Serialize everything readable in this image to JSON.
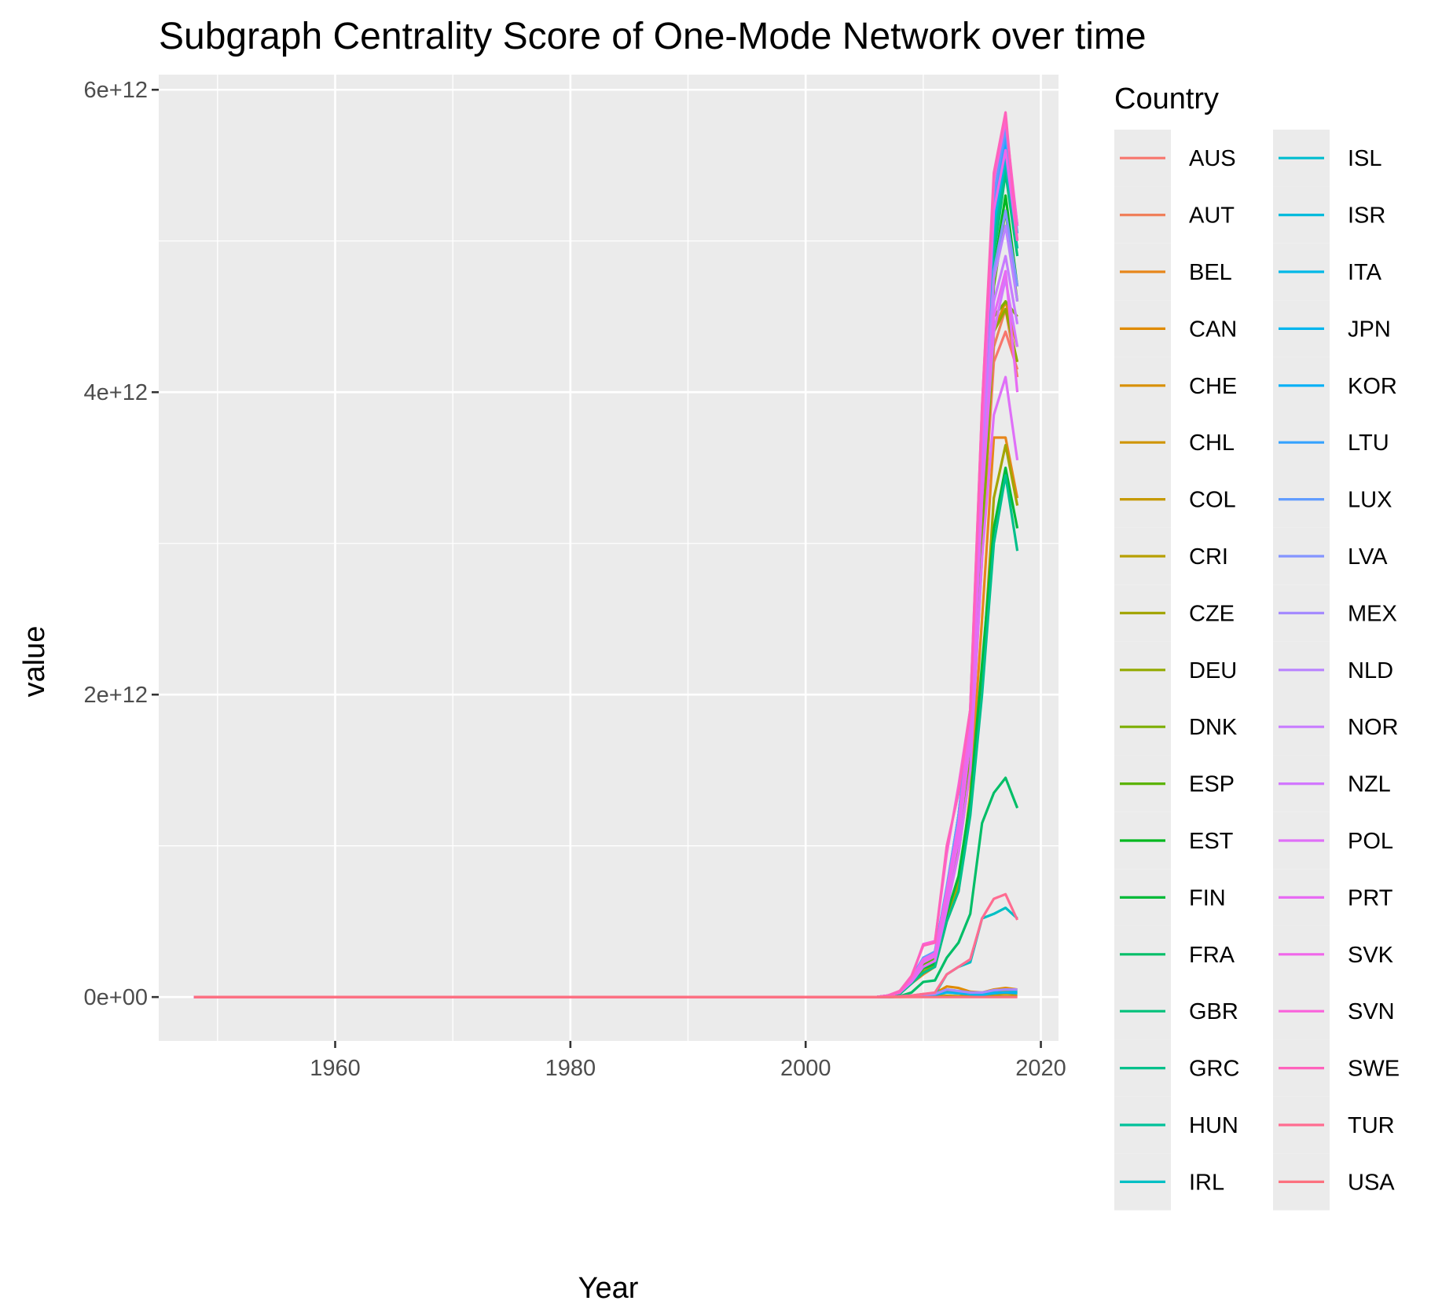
{
  "chart_data": {
    "type": "line",
    "title": "Subgraph Centrality Score of One-Mode Network over time",
    "xlabel": "Year",
    "ylabel": "value",
    "xlim": [
      1945,
      2021.5
    ],
    "ylim": [
      -290000000000.0,
      6100000000000.0
    ],
    "x_ticks": [
      1960,
      1980,
      2000,
      2020
    ],
    "x_tick_labels": [
      "1960",
      "1980",
      "2000",
      "2020"
    ],
    "x_minor_ticks": [
      1950,
      1970,
      1990,
      2010
    ],
    "y_ticks": [
      0,
      2000000000000.0,
      4000000000000.0,
      6000000000000.0
    ],
    "y_tick_labels": [
      "0e+00",
      "2e+12",
      "4e+12",
      "6e+12"
    ],
    "y_minor_ticks": [
      1000000000000.0,
      3000000000000.0,
      5000000000000.0
    ],
    "grid": true,
    "legend_title": "Country",
    "legend_position": "right",
    "x": [
      1948,
      2005,
      2006,
      2007,
      2008,
      2009,
      2010,
      2011,
      2012,
      2013,
      2014,
      2015,
      2016,
      2017,
      2018
    ],
    "series": [
      {
        "name": "AUS",
        "color": "#F8766D",
        "values": [
          0,
          0,
          0,
          10000000000.0,
          40000000000.0,
          120000000000.0,
          230000000000.0,
          270000000000.0,
          650000000000.0,
          1000000000000.0,
          1600000000000.0,
          3000000000000.0,
          4200000000000.0,
          4400000000000.0,
          4150000000000.0
        ]
      },
      {
        "name": "AUT",
        "color": "#F0805B",
        "values": [
          0,
          0,
          0,
          10000000000.0,
          30000000000.0,
          100000000000.0,
          190000000000.0,
          230000000000.0,
          600000000000.0,
          950000000000.0,
          1500000000000.0,
          2900000000000.0,
          4300000000000.0,
          4550000000000.0,
          4100000000000.0
        ]
      },
      {
        "name": "BEL",
        "color": "#E7861B",
        "values": [
          0,
          0,
          0,
          10000000000.0,
          30000000000.0,
          90000000000.0,
          150000000000.0,
          200000000000.0,
          500000000000.0,
          700000000000.0,
          1350000000000.0,
          2500000000000.0,
          3700000000000.0,
          3700000000000.0,
          3300000000000.0
        ]
      },
      {
        "name": "CAN",
        "color": "#E08B00",
        "values": [
          0,
          0,
          0,
          0,
          5000000000.0,
          10000000000.0,
          20000000000.0,
          25000000000.0,
          70000000000.0,
          60000000000.0,
          35000000000.0,
          30000000000.0,
          50000000000.0,
          60000000000.0,
          50000000000.0
        ]
      },
      {
        "name": "CHE",
        "color": "#D89000",
        "values": [
          0,
          0,
          0,
          10000000000.0,
          30000000000.0,
          110000000000.0,
          210000000000.0,
          250000000000.0,
          620000000000.0,
          980000000000.0,
          1550000000000.0,
          3000000000000.0,
          4400000000000.0,
          4600000000000.0,
          4300000000000.0
        ]
      },
      {
        "name": "CHL",
        "color": "#CF9400",
        "values": [
          0,
          0,
          0,
          0,
          2000000000.0,
          5000000000.0,
          10000000000.0,
          12000000000.0,
          30000000000.0,
          25000000000.0,
          15000000000.0,
          12000000000.0,
          20000000000.0,
          25000000000.0,
          20000000000.0
        ]
      },
      {
        "name": "COL",
        "color": "#C59900",
        "values": [
          0,
          0,
          0,
          0,
          2000000000.0,
          5000000000.0,
          10000000000.0,
          12000000000.0,
          35000000000.0,
          30000000000.0,
          20000000000.0,
          15000000000.0,
          30000000000.0,
          35000000000.0,
          30000000000.0
        ]
      },
      {
        "name": "CRI",
        "color": "#B79F00",
        "values": [
          0,
          0,
          0,
          0,
          1000000000.0,
          2000000000.0,
          3000000000.0,
          4000000000.0,
          8000000000.0,
          6000000000.0,
          4000000000.0,
          3000000000.0,
          5000000000.0,
          6000000000.0,
          5000000000.0
        ]
      },
      {
        "name": "CZE",
        "color": "#A3A500",
        "values": [
          0,
          0,
          0,
          10000000000.0,
          30000000000.0,
          90000000000.0,
          170000000000.0,
          210000000000.0,
          520000000000.0,
          750000000000.0,
          1250000000000.0,
          2100000000000.0,
          3300000000000.0,
          3650000000000.0,
          3250000000000.0
        ]
      },
      {
        "name": "DEU",
        "color": "#93AA00",
        "values": [
          0,
          0,
          0,
          10000000000.0,
          30000000000.0,
          100000000000.0,
          200000000000.0,
          240000000000.0,
          600000000000.0,
          960000000000.0,
          1550000000000.0,
          3000000000000.0,
          4400000000000.0,
          4550000000000.0,
          4200000000000.0
        ]
      },
      {
        "name": "DNK",
        "color": "#7CAE00",
        "values": [
          0,
          0,
          0,
          10000000000.0,
          30000000000.0,
          110000000000.0,
          210000000000.0,
          250000000000.0,
          620000000000.0,
          1000000000000.0,
          1600000000000.0,
          3100000000000.0,
          4500000000000.0,
          4600000000000.0,
          4500000000000.0
        ]
      },
      {
        "name": "ESP",
        "color": "#5BB300",
        "values": [
          0,
          0,
          0,
          10000000000.0,
          30000000000.0,
          120000000000.0,
          220000000000.0,
          260000000000.0,
          650000000000.0,
          1050000000000.0,
          1700000000000.0,
          3300000000000.0,
          4700000000000.0,
          5200000000000.0,
          4600000000000.0
        ]
      },
      {
        "name": "EST",
        "color": "#00B81F",
        "values": [
          0,
          0,
          0,
          10000000000.0,
          30000000000.0,
          120000000000.0,
          230000000000.0,
          270000000000.0,
          660000000000.0,
          1100000000000.0,
          1750000000000.0,
          3400000000000.0,
          4800000000000.0,
          5300000000000.0,
          4700000000000.0
        ]
      },
      {
        "name": "FIN",
        "color": "#00BA38",
        "values": [
          0,
          0,
          0,
          10000000000.0,
          30000000000.0,
          100000000000.0,
          190000000000.0,
          220000000000.0,
          550000000000.0,
          800000000000.0,
          1300000000000.0,
          2200000000000.0,
          3100000000000.0,
          3500000000000.0,
          3100000000000.0
        ]
      },
      {
        "name": "FRA",
        "color": "#00BE67",
        "values": [
          0,
          0,
          0,
          0,
          5000000000.0,
          30000000000.0,
          100000000000.0,
          110000000000.0,
          260000000000.0,
          360000000000.0,
          550000000000.0,
          1150000000000.0,
          1350000000000.0,
          1450000000000.0,
          1250000000000.0
        ]
      },
      {
        "name": "GBR",
        "color": "#00C17A",
        "values": [
          0,
          0,
          0,
          10000000000.0,
          30000000000.0,
          120000000000.0,
          240000000000.0,
          280000000000.0,
          680000000000.0,
          1150000000000.0,
          1800000000000.0,
          3500000000000.0,
          4900000000000.0,
          5450000000000.0,
          4900000000000.0
        ]
      },
      {
        "name": "GRC",
        "color": "#00C08B",
        "values": [
          0,
          0,
          0,
          10000000000.0,
          20000000000.0,
          90000000000.0,
          160000000000.0,
          200000000000.0,
          500000000000.0,
          700000000000.0,
          1200000000000.0,
          2000000000000.0,
          3000000000000.0,
          3450000000000.0,
          2950000000000.0
        ]
      },
      {
        "name": "HUN",
        "color": "#00C19A",
        "values": [
          0,
          0,
          0,
          10000000000.0,
          30000000000.0,
          120000000000.0,
          240000000000.0,
          280000000000.0,
          690000000000.0,
          1150000000000.0,
          1800000000000.0,
          3600000000000.0,
          5000000000000.0,
          5500000000000.0,
          4950000000000.0
        ]
      },
      {
        "name": "IRL",
        "color": "#00BFC4",
        "values": [
          0,
          0,
          0,
          0,
          5000000000.0,
          10000000000.0,
          15000000000.0,
          20000000000.0,
          150000000000.0,
          200000000000.0,
          230000000000.0,
          520000000000.0,
          550000000000.0,
          590000000000.0,
          520000000000.0
        ]
      },
      {
        "name": "ISL",
        "color": "#00BDD0",
        "values": [
          0,
          0,
          0,
          10000000000.0,
          30000000000.0,
          120000000000.0,
          250000000000.0,
          290000000000.0,
          700000000000.0,
          1200000000000.0,
          1850000000000.0,
          3700000000000.0,
          5100000000000.0,
          5550000000000.0,
          5000000000000.0
        ]
      },
      {
        "name": "ISR",
        "color": "#00BBDC",
        "values": [
          0,
          0,
          0,
          0,
          3000000000.0,
          8000000000.0,
          15000000000.0,
          20000000000.0,
          50000000000.0,
          40000000000.0,
          30000000000.0,
          25000000000.0,
          40000000000.0,
          50000000000.0,
          40000000000.0
        ]
      },
      {
        "name": "ITA",
        "color": "#00B8E7",
        "values": [
          0,
          0,
          0,
          10000000000.0,
          30000000000.0,
          120000000000.0,
          250000000000.0,
          290000000000.0,
          700000000000.0,
          1200000000000.0,
          1850000000000.0,
          3700000000000.0,
          5150000000000.0,
          5600000000000.0,
          5100000000000.0
        ]
      },
      {
        "name": "JPN",
        "color": "#00B5EE",
        "values": [
          0,
          0,
          0,
          0,
          2000000000.0,
          6000000000.0,
          10000000000.0,
          15000000000.0,
          30000000000.0,
          25000000000.0,
          18000000000.0,
          15000000000.0,
          25000000000.0,
          30000000000.0,
          25000000000.0
        ]
      },
      {
        "name": "KOR",
        "color": "#00B0F6",
        "values": [
          0,
          0,
          0,
          10000000000.0,
          30000000000.0,
          120000000000.0,
          250000000000.0,
          300000000000.0,
          720000000000.0,
          1200000000000.0,
          1850000000000.0,
          3800000000000.0,
          5200000000000.0,
          5650000000000.0,
          5100000000000.0
        ]
      },
      {
        "name": "LTU",
        "color": "#35A2FF",
        "values": [
          0,
          0,
          0,
          10000000000.0,
          30000000000.0,
          120000000000.0,
          250000000000.0,
          300000000000.0,
          720000000000.0,
          1200000000000.0,
          1850000000000.0,
          3800000000000.0,
          5250000000000.0,
          5700000000000.0,
          5050000000000.0
        ]
      },
      {
        "name": "LUX",
        "color": "#619CFF",
        "values": [
          0,
          0,
          0,
          10000000000.0,
          30000000000.0,
          130000000000.0,
          260000000000.0,
          300000000000.0,
          730000000000.0,
          1200000000000.0,
          1900000000000.0,
          3800000000000.0,
          5300000000000.0,
          5750000000000.0,
          5100000000000.0
        ]
      },
      {
        "name": "LVA",
        "color": "#8494FF",
        "values": [
          0,
          0,
          0,
          10000000000.0,
          30000000000.0,
          120000000000.0,
          240000000000.0,
          280000000000.0,
          680000000000.0,
          1100000000000.0,
          1750000000000.0,
          3500000000000.0,
          4800000000000.0,
          5200000000000.0,
          4700000000000.0
        ]
      },
      {
        "name": "MEX",
        "color": "#A58AFF",
        "values": [
          0,
          0,
          0,
          0,
          3000000000.0,
          8000000000.0,
          15000000000.0,
          20000000000.0,
          50000000000.0,
          40000000000.0,
          30000000000.0,
          30000000000.0,
          45000000000.0,
          50000000000.0,
          50000000000.0
        ]
      },
      {
        "name": "NLD",
        "color": "#B983FF",
        "values": [
          0,
          0,
          0,
          10000000000.0,
          30000000000.0,
          120000000000.0,
          240000000000.0,
          280000000000.0,
          680000000000.0,
          1100000000000.0,
          1750000000000.0,
          3500000000000.0,
          4750000000000.0,
          5100000000000.0,
          4600000000000.0
        ]
      },
      {
        "name": "NOR",
        "color": "#C77CFF",
        "values": [
          0,
          0,
          0,
          10000000000.0,
          30000000000.0,
          120000000000.0,
          240000000000.0,
          280000000000.0,
          680000000000.0,
          1100000000000.0,
          1750000000000.0,
          3400000000000.0,
          4600000000000.0,
          4900000000000.0,
          4450000000000.0
        ]
      },
      {
        "name": "NZL",
        "color": "#D277FF",
        "values": [
          0,
          0,
          0,
          10000000000.0,
          30000000000.0,
          110000000000.0,
          230000000000.0,
          270000000000.0,
          650000000000.0,
          1050000000000.0,
          1700000000000.0,
          3300000000000.0,
          4400000000000.0,
          4750000000000.0,
          4300000000000.0
        ]
      },
      {
        "name": "POL",
        "color": "#DF70F8",
        "values": [
          0,
          0,
          0,
          10000000000.0,
          30000000000.0,
          100000000000.0,
          200000000000.0,
          240000000000.0,
          580000000000.0,
          950000000000.0,
          1500000000000.0,
          2900000000000.0,
          3850000000000.0,
          4100000000000.0,
          3550000000000.0
        ]
      },
      {
        "name": "PRT",
        "color": "#E76BF3",
        "values": [
          0,
          0,
          0,
          10000000000.0,
          30000000000.0,
          110000000000.0,
          230000000000.0,
          270000000000.0,
          650000000000.0,
          1050000000000.0,
          1700000000000.0,
          3300000000000.0,
          4500000000000.0,
          4800000000000.0,
          4000000000000.0
        ]
      },
      {
        "name": "SVK",
        "color": "#F066EA",
        "values": [
          0,
          0,
          0,
          10000000000.0,
          30000000000.0,
          120000000000.0,
          250000000000.0,
          290000000000.0,
          700000000000.0,
          1150000000000.0,
          1850000000000.0,
          3700000000000.0,
          5200000000000.0,
          5600000000000.0,
          5000000000000.0
        ]
      },
      {
        "name": "SVN",
        "color": "#FA62DB",
        "values": [
          0,
          0,
          0,
          10000000000.0,
          30000000000.0,
          130000000000.0,
          350000000000.0,
          370000000000.0,
          950000000000.0,
          1400000000000.0,
          1900000000000.0,
          3900000000000.0,
          5400000000000.0,
          5800000000000.0,
          5100000000000.0
        ]
      },
      {
        "name": "SWE",
        "color": "#FF62BC",
        "values": [
          0,
          0,
          0,
          10000000000.0,
          40000000000.0,
          140000000000.0,
          340000000000.0,
          360000000000.0,
          1000000000000.0,
          1350000000000.0,
          1900000000000.0,
          3900000000000.0,
          5450000000000.0,
          5850000000000.0,
          5000000000000.0
        ]
      },
      {
        "name": "TUR",
        "color": "#FF6C91",
        "values": [
          0,
          0,
          0,
          0,
          5000000000.0,
          10000000000.0,
          20000000000.0,
          30000000000.0,
          150000000000.0,
          200000000000.0,
          250000000000.0,
          520000000000.0,
          650000000000.0,
          680000000000.0,
          510000000000.0
        ]
      },
      {
        "name": "USA",
        "color": "#FC717F",
        "values": [
          0,
          0,
          0,
          0,
          0,
          0,
          0,
          0,
          0,
          0,
          0,
          0,
          0,
          0,
          0
        ]
      }
    ]
  }
}
